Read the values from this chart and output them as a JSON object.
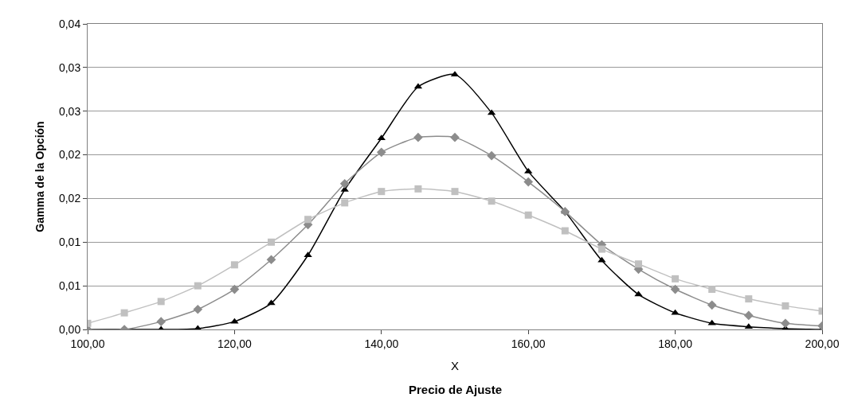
{
  "chart_data": {
    "type": "line",
    "xlabel": "X",
    "ylabel": "Gamma de la Opción",
    "annotations": [
      "Precio de Ajuste"
    ],
    "x": [
      100,
      105,
      110,
      115,
      120,
      125,
      130,
      135,
      140,
      145,
      150,
      155,
      160,
      165,
      170,
      175,
      180,
      185,
      190,
      195,
      200
    ],
    "series": [
      {
        "color": "#000000",
        "marker": "triangle",
        "values": [
          0,
          0,
          0,
          0.0001,
          0.0009,
          0.003,
          0.0085,
          0.016,
          0.0219,
          0.0278,
          0.0292,
          0.0248,
          0.0181,
          0.0135,
          0.0079,
          0.004,
          0.0019,
          0.0007,
          0.0003,
          0.0001,
          0
        ]
      },
      {
        "color": "#8c8c8c",
        "marker": "diamond",
        "values": [
          0,
          0,
          0.0009,
          0.0023,
          0.0046,
          0.008,
          0.012,
          0.0167,
          0.0203,
          0.022,
          0.022,
          0.0199,
          0.0169,
          0.0135,
          0.0097,
          0.0069,
          0.0046,
          0.0028,
          0.0016,
          0.0007,
          0.0004
        ]
      },
      {
        "color": "#c0c0c0",
        "marker": "square",
        "values": [
          0.0007,
          0.0019,
          0.0032,
          0.005,
          0.0074,
          0.01,
          0.0126,
          0.0145,
          0.0158,
          0.0161,
          0.0158,
          0.0147,
          0.0131,
          0.0113,
          0.0092,
          0.0075,
          0.0058,
          0.0046,
          0.0035,
          0.0027,
          0.0021
        ]
      }
    ],
    "xlim": [
      100,
      200
    ],
    "xticks": [
      {
        "value": 100,
        "label": "100,00"
      },
      {
        "value": 120,
        "label": "120,00"
      },
      {
        "value": 140,
        "label": "140,00"
      },
      {
        "value": 160,
        "label": "160,00"
      },
      {
        "value": 180,
        "label": "180,00"
      },
      {
        "value": 200,
        "label": "200,00"
      }
    ],
    "ylim": [
      0,
      0.035
    ],
    "yticks": [
      {
        "value": 0,
        "label": "0,00"
      },
      {
        "value": 0.005,
        "label": "0,01"
      },
      {
        "value": 0.01,
        "label": "0,01"
      },
      {
        "value": 0.015,
        "label": "0,02"
      },
      {
        "value": 0.02,
        "label": "0,02"
      },
      {
        "value": 0.025,
        "label": "0,03"
      },
      {
        "value": 0.03,
        "label": "0,03"
      },
      {
        "value": 0.035,
        "label": "0,04"
      }
    ],
    "grid": "y",
    "line_style": "solid"
  }
}
